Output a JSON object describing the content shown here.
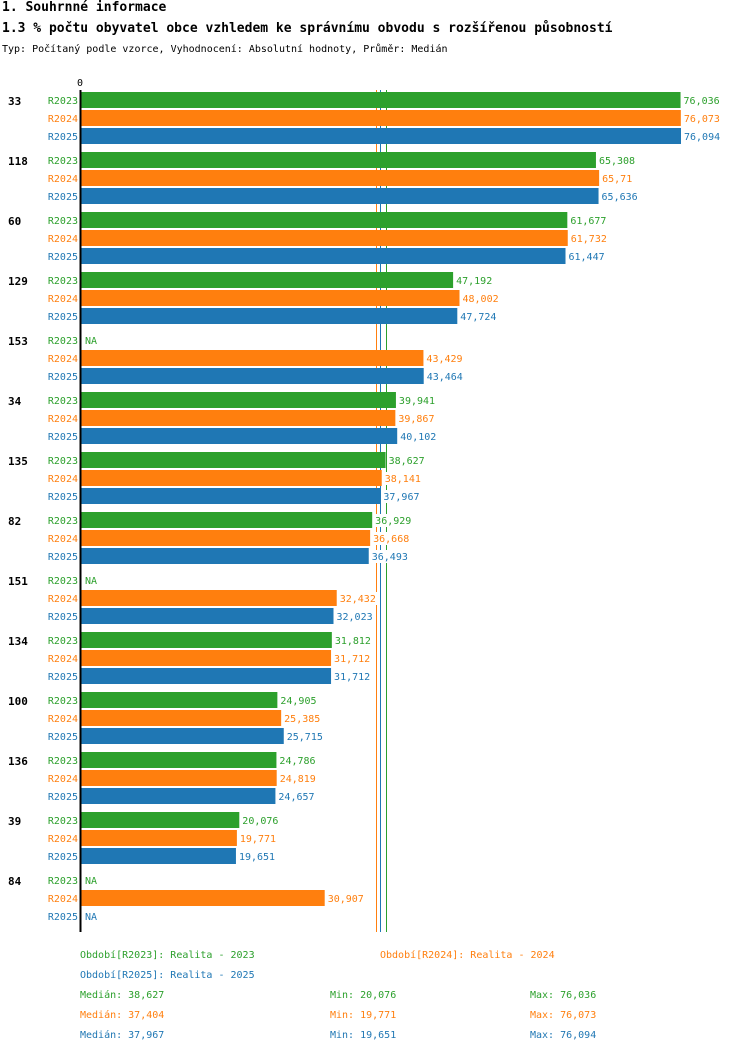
{
  "header": {
    "title": "1. Souhrnné informace",
    "chart_title": "1.3 % počtu obyvatel obce vzhledem ke správnímu obvodu s rozšířenou působností",
    "subtitle": "Typ: Počítaný podle vzorce, Vyhodnocení: Absolutní hodnoty, Průměr: Medián"
  },
  "colors": {
    "R2023": "#2ca02c",
    "R2024": "#ff7f0e",
    "R2025": "#1f77b4"
  },
  "chart_data": {
    "type": "bar",
    "orientation": "horizontal",
    "title": "1.3 % počtu obyvatel obce vzhledem ke správnímu obvodu s rozšířenou působností",
    "axis_zero_label": "0",
    "xlim": [
      0,
      76.094
    ],
    "categories": [
      "33",
      "118",
      "60",
      "129",
      "153",
      "34",
      "135",
      "82",
      "151",
      "134",
      "100",
      "136",
      "39",
      "84"
    ],
    "series": [
      {
        "name": "R2023",
        "values": [
          76.036,
          65.308,
          61.677,
          47.192,
          null,
          39.941,
          38.627,
          36.929,
          null,
          31.812,
          24.905,
          24.786,
          20.076,
          null
        ],
        "labels": [
          "76,036",
          "65,308",
          "61,677",
          "47,192",
          "NA",
          "39,941",
          "38,627",
          "36,929",
          "NA",
          "31,812",
          "24,905",
          "24,786",
          "20,076",
          "NA"
        ]
      },
      {
        "name": "R2024",
        "values": [
          76.073,
          65.71,
          61.732,
          48.002,
          43.429,
          39.867,
          38.141,
          36.668,
          32.432,
          31.712,
          25.385,
          24.819,
          19.771,
          30.907
        ],
        "labels": [
          "76,073",
          "65,71",
          "61,732",
          "48,002",
          "43,429",
          "39,867",
          "38,141",
          "36,668",
          "32,432",
          "31,712",
          "25,385",
          "24,819",
          "19,771",
          "30,907"
        ]
      },
      {
        "name": "R2025",
        "values": [
          76.094,
          65.636,
          61.447,
          47.724,
          43.464,
          40.102,
          37.967,
          36.493,
          32.023,
          31.712,
          25.715,
          24.657,
          19.651,
          null
        ],
        "labels": [
          "76,094",
          "65,636",
          "61,447",
          "47,724",
          "43,464",
          "40,102",
          "37,967",
          "36,493",
          "32,023",
          "31,712",
          "25,715",
          "24,657",
          "19,651",
          "NA"
        ]
      }
    ],
    "median_lines": [
      38.627,
      37.404,
      37.967
    ]
  },
  "legend": {
    "r2023": "Období[R2023]: Realita - 2023",
    "r2024": "Období[R2024]: Realita - 2024",
    "r2025": "Období[R2025]: Realita - 2025"
  },
  "stats": [
    {
      "series": "R2023",
      "median": "Medián: 38,627",
      "min": "Min: 20,076",
      "max": "Max: 76,036"
    },
    {
      "series": "R2024",
      "median": "Medián: 37,404",
      "min": "Min: 19,771",
      "max": "Max: 76,073"
    },
    {
      "series": "R2025",
      "median": "Medián: 37,967",
      "min": "Min: 19,651",
      "max": "Max: 76,094"
    }
  ]
}
